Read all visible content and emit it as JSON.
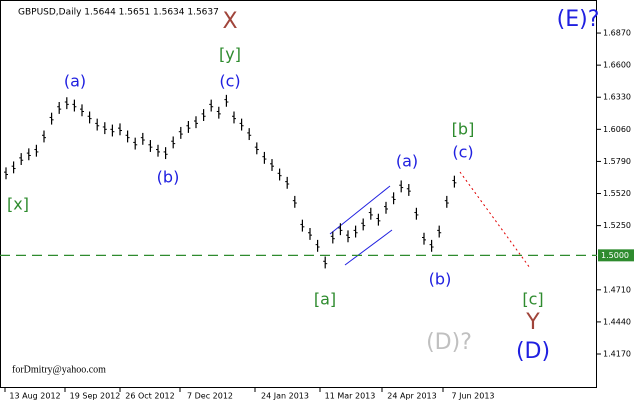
{
  "chart_data": {
    "type": "ohlc",
    "title": "GBPUSD,Daily  1.5644 1.5651 1.5634 1.5637",
    "credit": "forDmitry@yahoo.com",
    "color": "#000000",
    "high": [
      1.574,
      1.579,
      1.586,
      1.59,
      1.593,
      1.605,
      1.62,
      1.629,
      1.633,
      1.631,
      1.627,
      1.621,
      1.615,
      1.612,
      1.61,
      1.611,
      1.605,
      1.599,
      1.603,
      1.597,
      1.593,
      1.591,
      1.6,
      1.608,
      1.613,
      1.617,
      1.623,
      1.631,
      1.625,
      1.635,
      1.621,
      1.615,
      1.607,
      1.595,
      1.587,
      1.581,
      1.573,
      1.566,
      1.55,
      1.53,
      1.523,
      1.513,
      1.499,
      1.52,
      1.527,
      1.521,
      1.525,
      1.531,
      1.54,
      1.535,
      1.545,
      1.553,
      1.563,
      1.56,
      1.54,
      1.519,
      1.513,
      1.525,
      1.55,
      1.567
    ],
    "low": [
      1.564,
      1.569,
      1.576,
      1.58,
      1.583,
      1.595,
      1.61,
      1.619,
      1.623,
      1.621,
      1.617,
      1.611,
      1.605,
      1.602,
      1.6,
      1.601,
      1.595,
      1.589,
      1.593,
      1.587,
      1.583,
      1.581,
      1.59,
      1.598,
      1.603,
      1.607,
      1.613,
      1.621,
      1.615,
      1.625,
      1.611,
      1.605,
      1.597,
      1.585,
      1.577,
      1.571,
      1.563,
      1.556,
      1.54,
      1.52,
      1.513,
      1.503,
      1.489,
      1.51,
      1.517,
      1.511,
      1.515,
      1.521,
      1.53,
      1.525,
      1.535,
      1.543,
      1.553,
      1.55,
      1.53,
      1.509,
      1.503,
      1.515,
      1.54,
      1.557
    ],
    "x_labels": [
      "13 Aug 2012",
      "19 Sep 2012",
      "26 Oct 2012",
      "7 Dec 2012",
      "24 Jan 2013",
      "11 Mar 2013",
      "24 Apr 2013",
      "7 Jun 2013"
    ],
    "ylim": [
      1.3884,
      1.7148
    ],
    "yticks": [
      {
        "value": 1.687,
        "label": "1.6870"
      },
      {
        "value": 1.66,
        "label": "1.6600"
      },
      {
        "value": 1.633,
        "label": "1.6330"
      },
      {
        "value": 1.606,
        "label": "1.6060"
      },
      {
        "value": 1.579,
        "label": "1.5790"
      },
      {
        "value": 1.552,
        "label": "1.5520"
      },
      {
        "value": 1.525,
        "label": "1.5250"
      },
      {
        "value": 1.471,
        "label": "1.4710"
      },
      {
        "value": 1.444,
        "label": "1.4440"
      },
      {
        "value": 1.417,
        "label": "1.4170"
      }
    ],
    "hline": {
      "value": 1.5,
      "label": "1.5000",
      "color": "#2e8b2e"
    },
    "annotations": [
      {
        "text": "X",
        "color": "#a0443a"
      },
      {
        "text": "[y]",
        "color": "#2e8b2e"
      },
      {
        "text": "(c)",
        "color": "#2020e0"
      },
      {
        "text": "(a)",
        "color": "#2020e0"
      },
      {
        "text": "(b)",
        "color": "#2020e0"
      },
      {
        "text": "[x]",
        "color": "#2e8b2e"
      },
      {
        "text": "(a)",
        "color": "#2020e0"
      },
      {
        "text": "[b]",
        "color": "#2e8b2e"
      },
      {
        "text": "(c)",
        "color": "#2020e0"
      },
      {
        "text": "(b)",
        "color": "#2020e0"
      },
      {
        "text": "[a]",
        "color": "#2e8b2e"
      },
      {
        "text": "(E)?",
        "color": "#2020e0"
      },
      {
        "text": "(D)?",
        "color": "#c0c0c0"
      },
      {
        "text": "[c]",
        "color": "#2e8b2e"
      },
      {
        "text": "Y",
        "color": "#a0443a"
      },
      {
        "text": "(D)",
        "color": "#2020e0"
      }
    ]
  }
}
